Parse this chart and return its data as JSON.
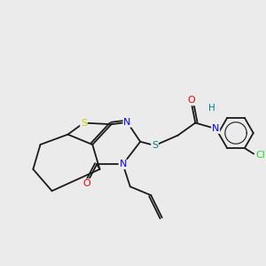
{
  "background_color": "#ebebeb",
  "bond_color": "#1a1a1a",
  "atom_colors": {
    "S_thio": "#cccc00",
    "S_link": "#008080",
    "N": "#0000ff",
    "O": "#ff0000",
    "Cl": "#33cc33",
    "H": "#008080"
  }
}
